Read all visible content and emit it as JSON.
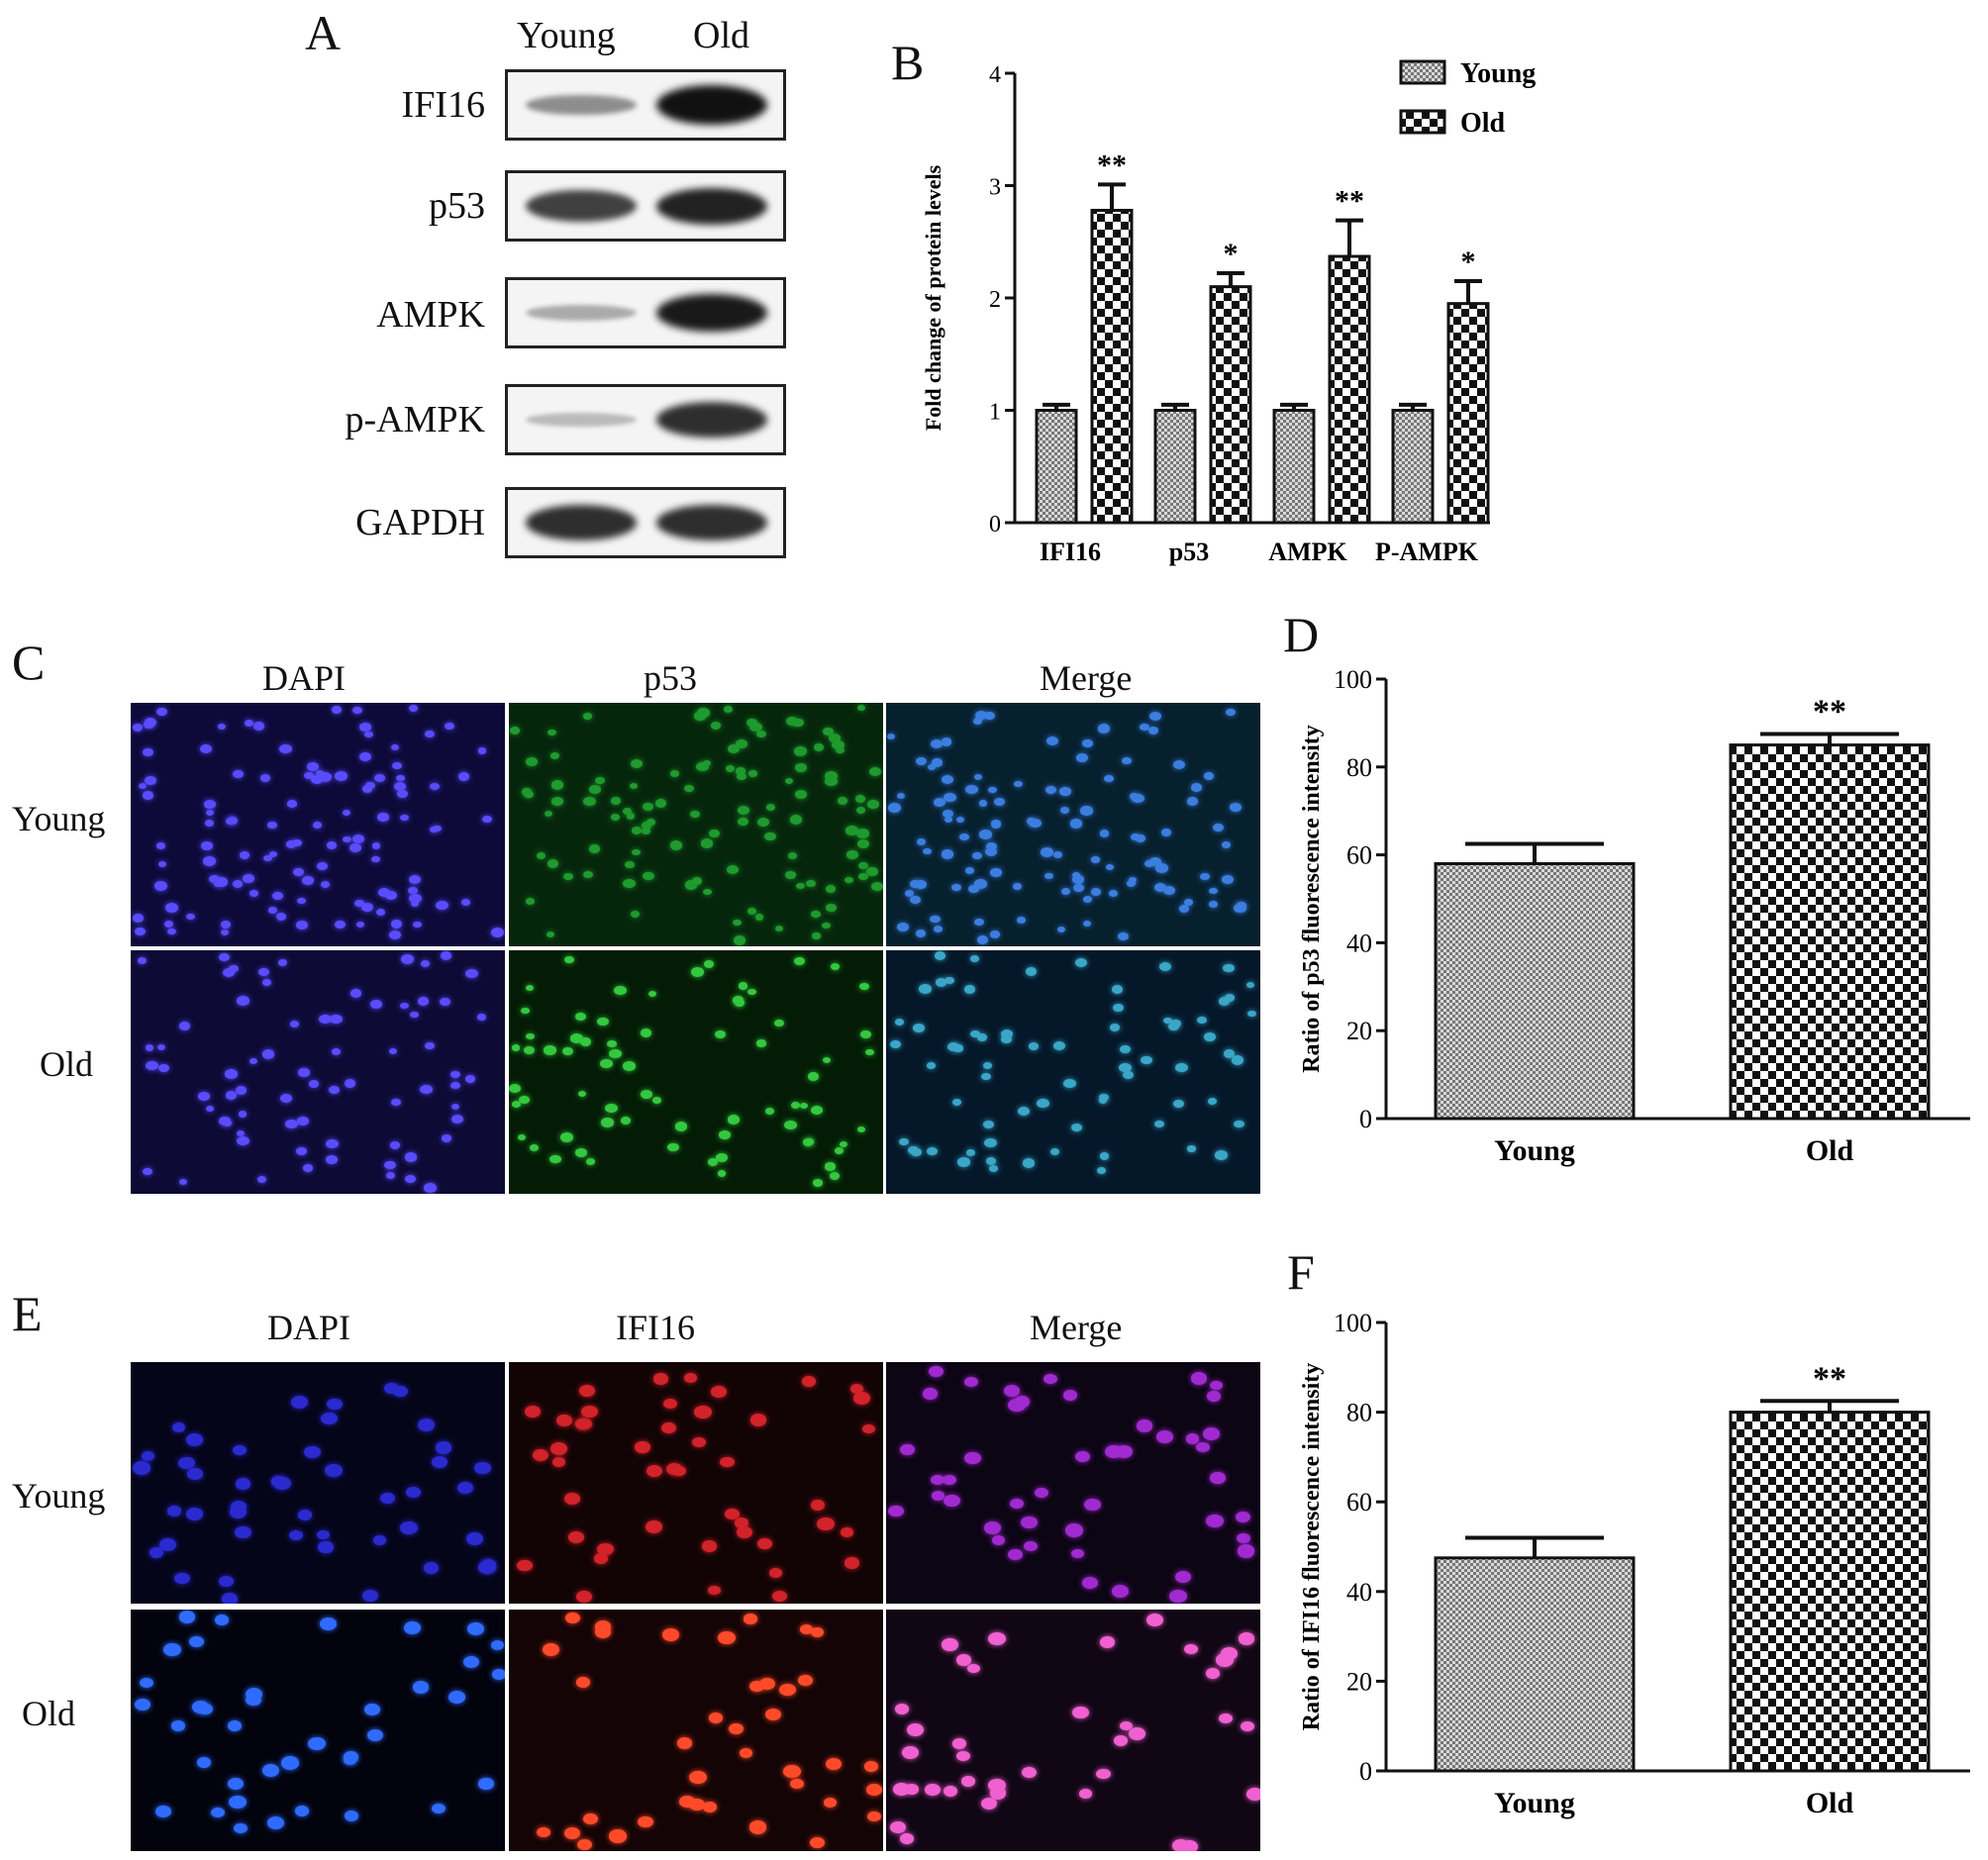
{
  "panels": {
    "A": "A",
    "B": "B",
    "C": "C",
    "D": "D",
    "E": "E",
    "F": "F"
  },
  "western_blot": {
    "columns": [
      "Young",
      "Old"
    ],
    "rows": [
      {
        "label": "IFI16",
        "young_intensity": 0.35,
        "old_intensity": 1.0
      },
      {
        "label": "p53",
        "young_intensity": 0.75,
        "old_intensity": 0.9
      },
      {
        "label": "AMPK",
        "young_intensity": 0.2,
        "old_intensity": 0.95
      },
      {
        "label": "p-AMPK",
        "young_intensity": 0.12,
        "old_intensity": 0.85
      },
      {
        "label": "GAPDH",
        "young_intensity": 0.85,
        "old_intensity": 0.85
      }
    ]
  },
  "if_p53": {
    "columns": [
      "DAPI",
      "p53",
      "Merge"
    ],
    "rows": [
      "Young",
      "Old"
    ]
  },
  "if_ifi16": {
    "columns": [
      "DAPI",
      "IFI16",
      "Merge"
    ],
    "rows": [
      "Young",
      "Old"
    ]
  },
  "chart_data": [
    {
      "id": "B",
      "type": "bar",
      "categories": [
        "IFI16",
        "p53",
        "AMPK",
        "P-AMPK"
      ],
      "series": [
        {
          "name": "Young",
          "values": [
            1.0,
            1.0,
            1.0,
            1.0
          ],
          "errors": [
            0.05,
            0.05,
            0.05,
            0.05
          ],
          "pattern": "fine"
        },
        {
          "name": "Old",
          "values": [
            2.78,
            2.1,
            2.37,
            1.95
          ],
          "errors": [
            0.23,
            0.12,
            0.32,
            0.2
          ],
          "pattern": "checker"
        }
      ],
      "significance": [
        "**",
        "*",
        "**",
        "*"
      ],
      "ylabel": "Fold change of protein levels",
      "ylim": [
        0,
        4
      ],
      "yticks": [
        "0",
        "1",
        "2",
        "3",
        "4"
      ],
      "legend": "top-right",
      "grid": false
    },
    {
      "id": "D",
      "type": "bar",
      "categories": [
        "Young",
        "Old"
      ],
      "values": [
        58,
        85
      ],
      "errors": [
        4.5,
        2.5
      ],
      "patterns": [
        "fine",
        "checker"
      ],
      "significance": [
        "",
        "**"
      ],
      "ylabel": "Ratio of p53 fluorescence intensity",
      "ylim": [
        0,
        100
      ],
      "yticks": [
        "0",
        "20",
        "40",
        "60",
        "80",
        "100"
      ],
      "grid": false
    },
    {
      "id": "F",
      "type": "bar",
      "categories": [
        "Young",
        "Old"
      ],
      "values": [
        47.5,
        80
      ],
      "errors": [
        4.5,
        2.5
      ],
      "patterns": [
        "fine",
        "checker"
      ],
      "significance": [
        "",
        "**"
      ],
      "ylabel": "Ratio of IFI16 fluorescence intensity",
      "ylim": [
        0,
        100
      ],
      "yticks": [
        "0",
        "20",
        "40",
        "60",
        "80",
        "100"
      ],
      "grid": false
    }
  ]
}
